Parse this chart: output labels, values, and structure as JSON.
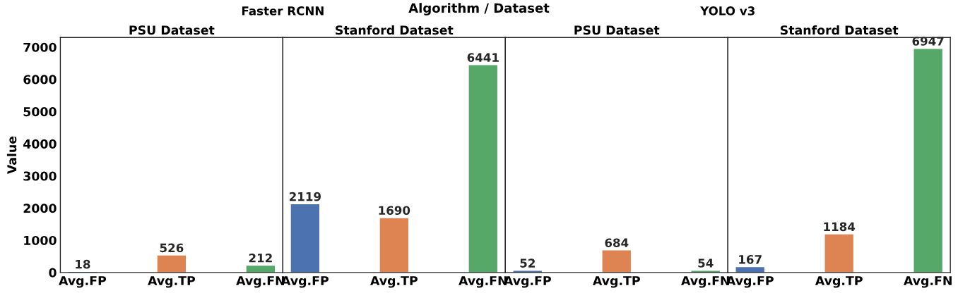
{
  "chart_data": [
    {
      "type": "bar",
      "title": "PSU Dataset",
      "subtitle": "Faster RCNN",
      "annotations": [
        "Algorithm / Dataset"
      ],
      "ylabel": "Value",
      "categories": [
        "Avg.FP",
        "Avg.TP",
        "Avg.FN"
      ],
      "values": [
        18,
        526,
        212
      ],
      "colors": [
        "#4c72b0",
        "#dd8452",
        "#55a868"
      ],
      "ylim": [
        0,
        7300
      ],
      "yticks": [
        0,
        1000,
        2000,
        3000,
        4000,
        5000,
        6000,
        7000
      ],
      "data_labels": true
    },
    {
      "type": "bar",
      "title": "Stanford Dataset",
      "categories": [
        "Avg.FP",
        "Avg.TP",
        "Avg.FN"
      ],
      "values": [
        2119,
        1690,
        6441
      ],
      "colors": [
        "#4c72b0",
        "#dd8452",
        "#55a868"
      ],
      "ylim": [
        0,
        7300
      ],
      "yticks": [
        0,
        1000,
        2000,
        3000,
        4000,
        5000,
        6000,
        7000
      ],
      "data_labels": true,
      "tick_labels": "x"
    },
    {
      "type": "bar",
      "title": "PSU Dataset",
      "subtitle": "YOLO v3",
      "categories": [
        "Avg.FP",
        "Avg.TP",
        "Avg.FN"
      ],
      "values": [
        52,
        684,
        54
      ],
      "colors": [
        "#4c72b0",
        "#dd8452",
        "#55a868"
      ],
      "ylim": [
        0,
        7300
      ],
      "yticks": [
        0,
        1000,
        2000,
        3000,
        4000,
        5000,
        6000,
        7000
      ],
      "data_labels": true,
      "tick_labels": "x"
    },
    {
      "type": "bar",
      "title": "Stanford Dataset",
      "categories": [
        "Avg.FP",
        "Avg.TP",
        "Avg.FN"
      ],
      "values": [
        167,
        1184,
        6947
      ],
      "colors": [
        "#4c72b0",
        "#dd8452",
        "#55a868"
      ],
      "ylim": [
        0,
        7300
      ],
      "yticks": [
        0,
        1000,
        2000,
        3000,
        4000,
        5000,
        6000,
        7000
      ],
      "data_labels": true,
      "tick_labels": "x"
    }
  ]
}
